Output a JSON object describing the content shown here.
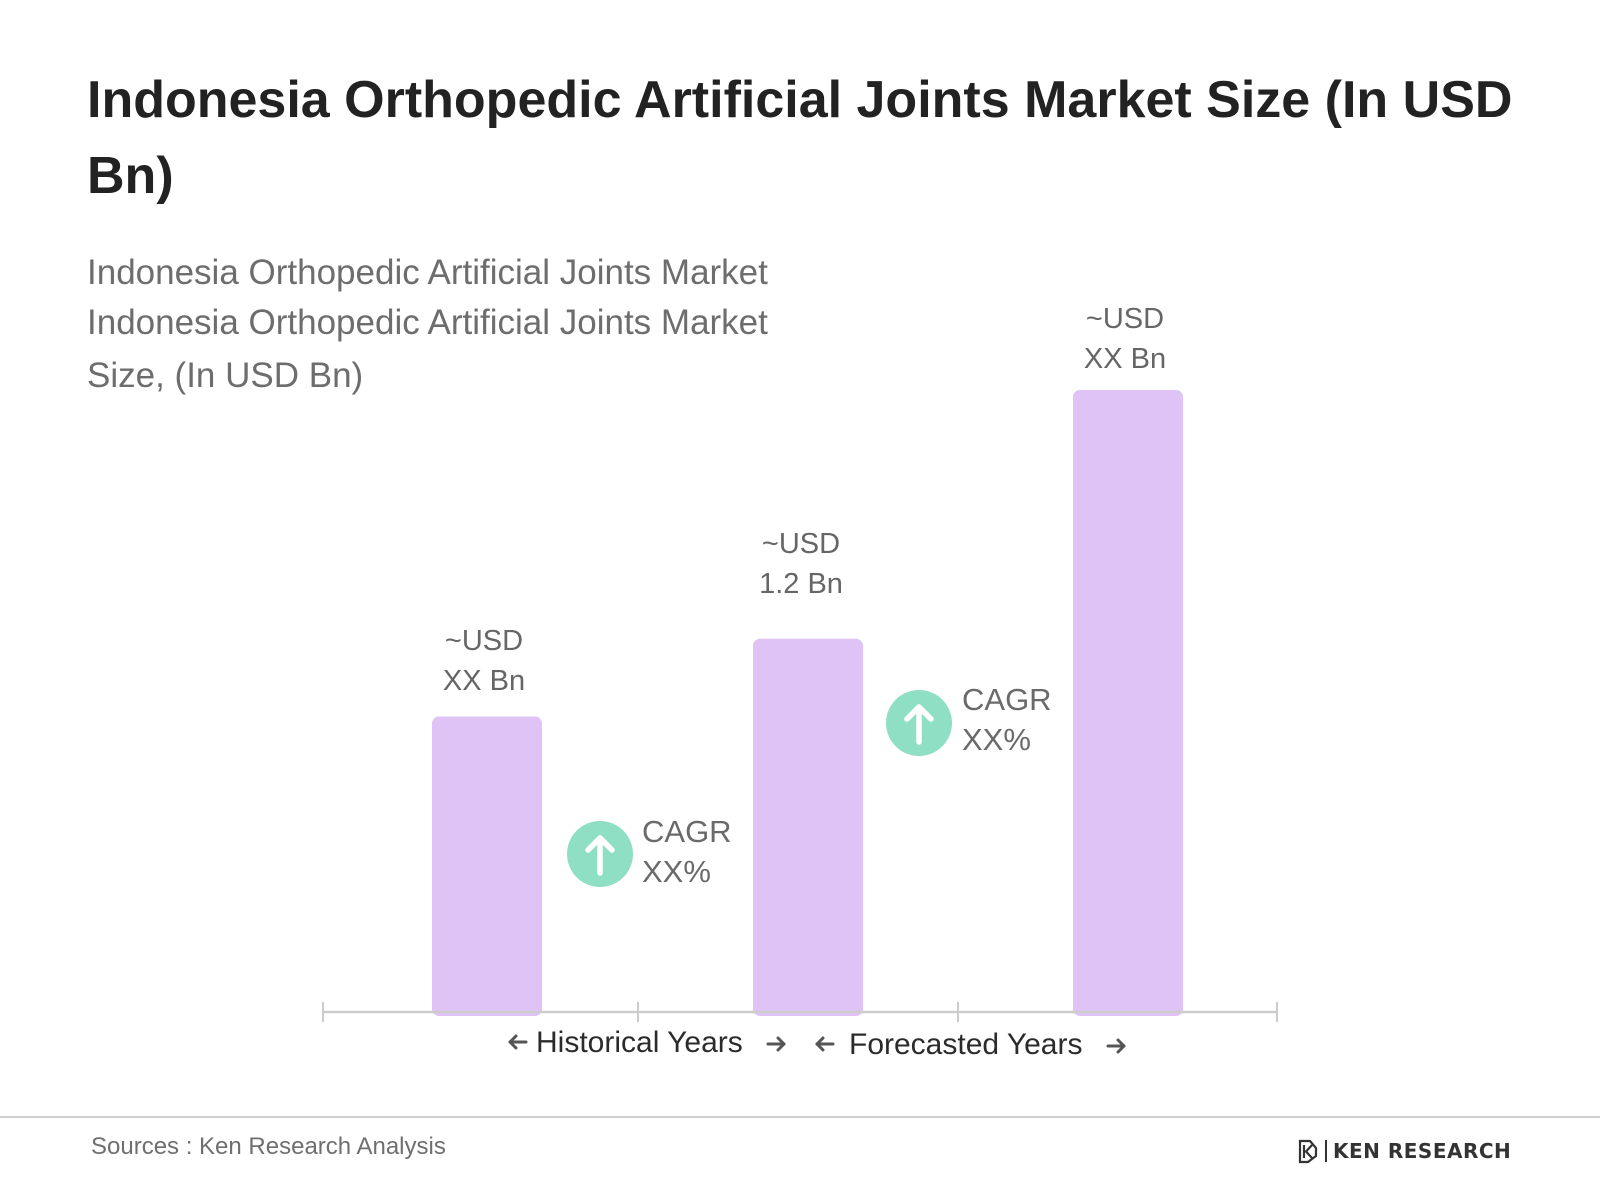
{
  "chart_data": {
    "type": "bar",
    "title": "Indonesia Orthopedic Artificial Joints Market Size (In USD Bn)",
    "subtitle_lines": [
      "Indonesia Orthopedic Artificial Joints Market",
      "Indonesia Orthopedic Artificial Joints Market",
      "Size, (In USD Bn)"
    ],
    "bars": [
      {
        "label_line1": "~USD",
        "label_line2": "XX Bn",
        "value": 0.95
      },
      {
        "label_line1": "~USD",
        "label_line2": "1.2 Bn",
        "value": 1.2
      },
      {
        "label_line1": "~USD",
        "label_line2": "XX Bn",
        "value": 2.0
      }
    ],
    "ylim": [
      0,
      2.0
    ],
    "grid": false,
    "cagr": [
      {
        "line1": "CAGR",
        "line2": "XX%"
      },
      {
        "line1": "CAGR",
        "line2": "XX%"
      }
    ],
    "periods": [
      "Historical Years",
      "Forecasted Years"
    ]
  },
  "footer": {
    "source": "Sources : Ken Research Analysis",
    "logo_text": "KEN RESEARCH"
  },
  "colors": {
    "bar": "#dfc3f6",
    "cagr_circle": "#8edfc3",
    "axis": "#cccccc"
  },
  "icons": {
    "cagr": "arrow-up-icon",
    "period_arrows": [
      "arrow-left-icon",
      "arrow-right-icon"
    ],
    "logo": "ken-research-logo-icon"
  }
}
